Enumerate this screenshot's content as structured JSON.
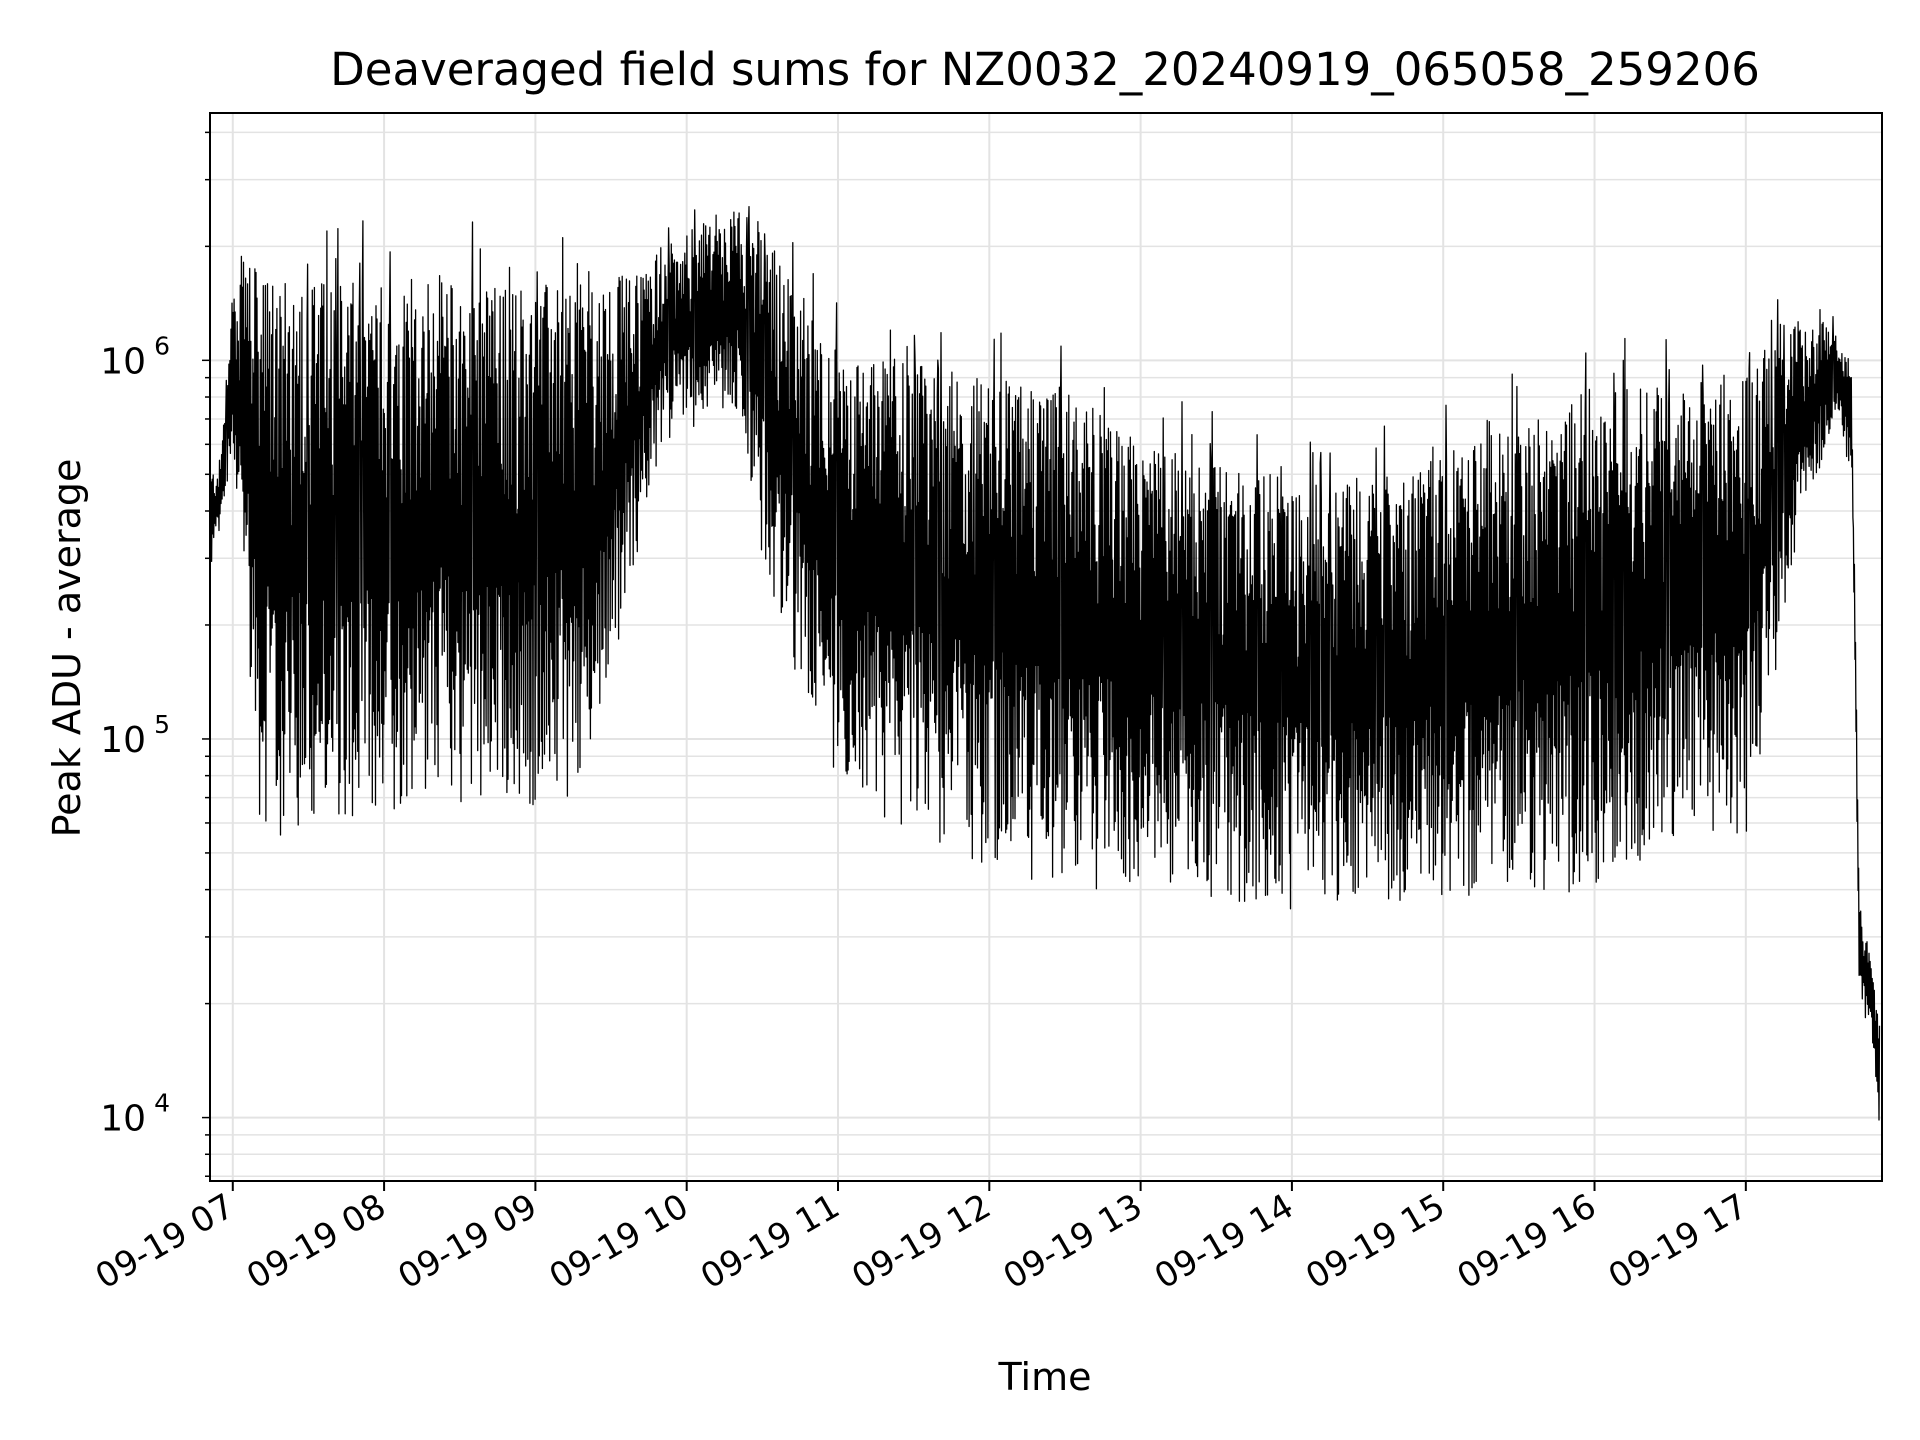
{
  "chart_data": {
    "type": "line",
    "title": "Deaveraged field sums for NZ0032_20240919_065058_259206",
    "xlabel": "Time",
    "ylabel": "Peak ADU - average",
    "yscale": "log",
    "ylim": [
      6800,
      4500000
    ],
    "xlim": [
      "2024-09-19 06:50:58",
      "2024-09-19 17:54:00"
    ],
    "grid": true,
    "line_color": "#000000",
    "x_ticks": [
      "09-19 07",
      "09-19 08",
      "09-19 09",
      "09-19 10",
      "09-19 11",
      "09-19 12",
      "09-19 13",
      "09-19 14",
      "09-19 15",
      "09-19 16",
      "09-19 17"
    ],
    "y_ticks": [
      {
        "value": 10000,
        "base": "10",
        "exp": "4"
      },
      {
        "value": 100000,
        "base": "10",
        "exp": "5"
      },
      {
        "value": 1000000,
        "base": "10",
        "exp": "6"
      }
    ],
    "series": [
      {
        "x": [
          "2024-09-19 06:51",
          "2024-09-19 06:55",
          "2024-09-19 07:00",
          "2024-09-19 07:05",
          "2024-09-19 07:10",
          "2024-09-19 07:20",
          "2024-09-19 07:30",
          "2024-09-19 07:40",
          "2024-09-19 08:00",
          "2024-09-19 08:20",
          "2024-09-19 08:40",
          "2024-09-19 09:00",
          "2024-09-19 09:20",
          "2024-09-19 09:40",
          "2024-09-19 09:50",
          "2024-09-19 10:00",
          "2024-09-19 10:20",
          "2024-09-19 10:35",
          "2024-09-19 11:00",
          "2024-09-19 11:30",
          "2024-09-19 12:00",
          "2024-09-19 12:30",
          "2024-09-19 13:00",
          "2024-09-19 13:30",
          "2024-09-19 14:00",
          "2024-09-19 14:30",
          "2024-09-19 15:00",
          "2024-09-19 15:30",
          "2024-09-19 16:00",
          "2024-09-19 16:30",
          "2024-09-19 17:00",
          "2024-09-19 17:20",
          "2024-09-19 17:35",
          "2024-09-19 17:42",
          "2024-09-19 17:45",
          "2024-09-19 17:50",
          "2024-09-19 17:53"
        ],
        "high": [
          500000,
          550000,
          1400000,
          2000000,
          1700000,
          1600000,
          1700000,
          1600000,
          1600000,
          1650000,
          1600000,
          1600000,
          1600000,
          1700000,
          2000000,
          2200000,
          2500000,
          2000000,
          1050000,
          1000000,
          900000,
          850000,
          600000,
          550000,
          480000,
          500000,
          550000,
          700000,
          850000,
          850000,
          950000,
          1300000,
          1250000,
          900000,
          40000,
          25000,
          18000
        ],
        "low": [
          270000,
          330000,
          550000,
          250000,
          60000,
          50000,
          55000,
          60000,
          60000,
          70000,
          60000,
          65000,
          70000,
          300000,
          600000,
          650000,
          700000,
          200000,
          70000,
          55000,
          45000,
          40000,
          40000,
          38000,
          35000,
          33000,
          37000,
          40000,
          38000,
          55000,
          55000,
          300000,
          700000,
          500000,
          18000,
          16000,
          9000
        ]
      }
    ]
  }
}
